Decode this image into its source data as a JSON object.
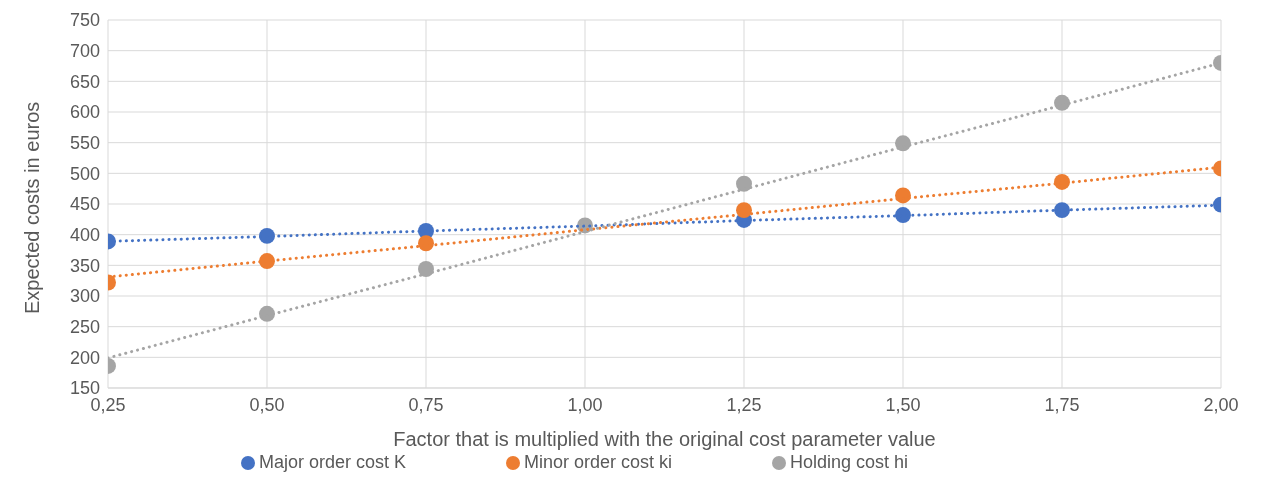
{
  "chart_data": {
    "type": "scatter",
    "xlabel": "Factor that is multiplied with the original cost parameter value",
    "ylabel": "Expected costs in euros",
    "x": [
      0.25,
      0.5,
      0.75,
      1.0,
      1.25,
      1.5,
      1.75,
      2.0
    ],
    "series": [
      {
        "name": "Major order cost K",
        "color": "#4472c4",
        "marker": "circle",
        "values": [
          389,
          398,
          406,
          null,
          424,
          432,
          440,
          449
        ]
      },
      {
        "name": "Minor order cost ki",
        "color": "#ed7d31",
        "marker": "circle",
        "values": [
          322,
          357,
          386,
          null,
          440,
          464,
          486,
          508
        ]
      },
      {
        "name": "Holding cost hi",
        "color": "#a5a5a5",
        "marker": "circle",
        "values": [
          186,
          271,
          344,
          415,
          483,
          549,
          615,
          680
        ]
      },
      {
        "type": "line",
        "color": "#4472c4",
        "line_style": "dotted",
        "marker": "none",
        "values": [
          389,
          397,
          406,
          414,
          423,
          431,
          440,
          448
        ]
      },
      {
        "type": "line",
        "color": "#ed7d31",
        "line_style": "dotted",
        "marker": "none",
        "values": [
          331,
          357,
          382,
          408,
          433,
          459,
          484,
          510
        ]
      },
      {
        "type": "line",
        "color": "#a5a5a5",
        "line_style": "dotted",
        "marker": "none",
        "values": [
          199,
          268,
          336,
          405,
          474,
          543,
          611,
          680
        ]
      }
    ],
    "xlim": [
      0.25,
      2.0
    ],
    "xticks": [
      {
        "value": 0.25,
        "label": "0,25"
      },
      {
        "value": 0.5,
        "label": "0,50"
      },
      {
        "value": 0.75,
        "label": "0,75"
      },
      {
        "value": 1.0,
        "label": "1,00"
      },
      {
        "value": 1.25,
        "label": "1,25"
      },
      {
        "value": 1.5,
        "label": "1,50"
      },
      {
        "value": 1.75,
        "label": "1,75"
      },
      {
        "value": 2.0,
        "label": "2,00"
      }
    ],
    "ylim": [
      150,
      750
    ],
    "yticks": [
      150,
      200,
      250,
      300,
      350,
      400,
      450,
      500,
      550,
      600,
      650,
      700,
      750
    ],
    "grid": true,
    "legend": "bottom"
  }
}
